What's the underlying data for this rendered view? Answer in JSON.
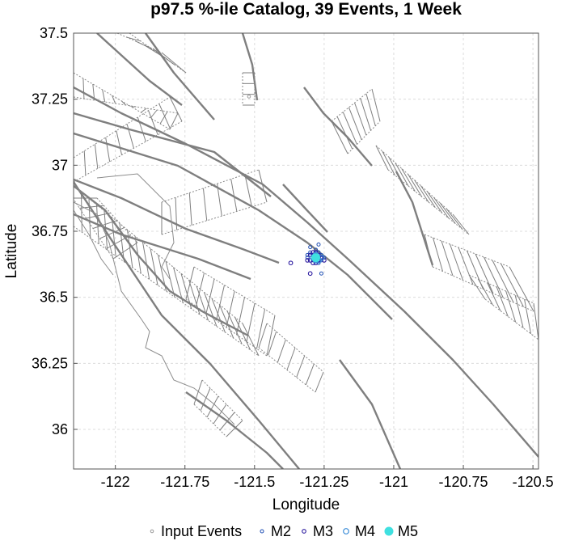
{
  "chart_data": {
    "type": "scatter",
    "title": "p97.5 %-ile Catalog, 39 Events, 1 Week",
    "xlabel": "Longitude",
    "ylabel": "Latitude",
    "xlim": [
      -122.15,
      -120.48
    ],
    "ylim": [
      35.85,
      37.5
    ],
    "xticks": [
      -122,
      -121.75,
      -121.5,
      -121.25,
      -121,
      -120.75,
      -120.5
    ],
    "yticks": [
      36,
      36.25,
      36.5,
      36.75,
      37,
      37.25,
      37.5
    ],
    "grid": true,
    "legend_position": "bottom",
    "colors": {
      "input": "#999999",
      "M2": "#1f4fb4",
      "M3": "#2c1ba0",
      "M4": "#3f8fd8",
      "M5": "#3fe0e0",
      "faults": "#7f7f7f"
    },
    "legend": [
      "Input Events",
      "M2",
      "M3",
      "M4",
      "M5"
    ],
    "series": [
      {
        "name": "Input Events",
        "points": [
          [
            -121.52,
            37.26
          ]
        ]
      },
      {
        "name": "M2",
        "points": [
          [
            -121.3,
            36.67
          ],
          [
            -121.27,
            36.7
          ],
          [
            -121.29,
            36.64
          ],
          [
            -121.31,
            36.65
          ],
          [
            -121.26,
            36.66
          ],
          [
            -121.28,
            36.68
          ],
          [
            -121.25,
            36.65
          ],
          [
            -121.3,
            36.69
          ],
          [
            -121.27,
            36.63
          ],
          [
            -121.29,
            36.66
          ],
          [
            -121.26,
            36.64
          ],
          [
            -121.27,
            36.67
          ],
          [
            -121.31,
            36.66
          ],
          [
            -121.28,
            36.64
          ],
          [
            -121.26,
            36.59
          ]
        ]
      },
      {
        "name": "M3",
        "points": [
          [
            -121.29,
            36.66
          ],
          [
            -121.28,
            36.65
          ],
          [
            -121.3,
            36.64
          ],
          [
            -121.27,
            36.65
          ],
          [
            -121.28,
            36.67
          ],
          [
            -121.29,
            36.63
          ],
          [
            -121.27,
            36.64
          ],
          [
            -121.3,
            36.66
          ],
          [
            -121.26,
            36.65
          ],
          [
            -121.28,
            36.63
          ],
          [
            -121.29,
            36.67
          ],
          [
            -121.27,
            36.66
          ],
          [
            -121.25,
            36.64
          ],
          [
            -121.31,
            36.64
          ],
          [
            -121.37,
            36.63
          ],
          [
            -121.3,
            36.59
          ],
          [
            -121.28,
            36.66
          ]
        ]
      },
      {
        "name": "M4",
        "points": [
          [
            -121.28,
            36.66
          ],
          [
            -121.27,
            36.64
          ],
          [
            -121.29,
            36.65
          ],
          [
            -121.26,
            36.65
          ],
          [
            -121.28,
            36.64
          ]
        ]
      },
      {
        "name": "M5",
        "points": [
          [
            -121.28,
            36.65
          ]
        ]
      }
    ]
  }
}
